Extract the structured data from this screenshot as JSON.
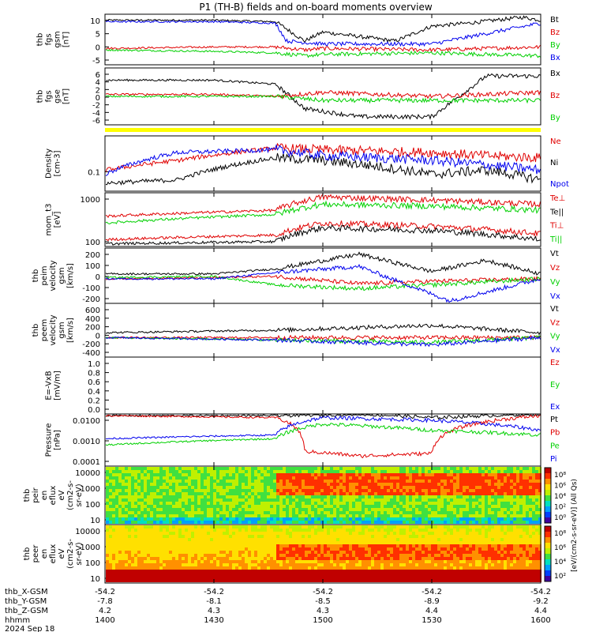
{
  "title": "P1 (TH-B) fields and on-board moments overview",
  "colors": {
    "black": "#000000",
    "red": "#e00000",
    "green": "#00d000",
    "blue": "#0000ee",
    "yellow": "#ffff00"
  },
  "panels": [
    {
      "id": "fgs-gsm",
      "ylabel": [
        "thb",
        "fgs",
        "gsm",
        "[nT]"
      ],
      "yticks": [
        "10",
        "5",
        "0",
        "-5"
      ],
      "legend": [
        {
          "label": "Bt",
          "color": "black"
        },
        {
          "label": "Bz",
          "color": "red"
        },
        {
          "label": "By",
          "color": "green"
        },
        {
          "label": "Bx",
          "color": "blue"
        }
      ]
    },
    {
      "id": "fgs-dsl",
      "ylabel": [
        "thb",
        "fgs",
        "gse",
        "[nT]"
      ],
      "yticks": [
        "6",
        "4",
        "2",
        "0",
        "-2",
        "-4",
        "-6"
      ],
      "legend": [
        {
          "label": "Bx",
          "color": "black"
        },
        {
          "label": "Bz",
          "color": "red"
        },
        {
          "label": "By",
          "color": "green"
        }
      ]
    },
    {
      "id": "density",
      "ylabel": [
        "Density",
        "[cm-3]"
      ],
      "yticks": [
        "0.1"
      ],
      "legend": [
        {
          "label": "Ne",
          "color": "red"
        },
        {
          "label": "Ni",
          "color": "black"
        },
        {
          "label": "Npot",
          "color": "blue"
        }
      ]
    },
    {
      "id": "temperature",
      "ylabel": [
        "mom_t3",
        "[eV]"
      ],
      "yticks": [
        "1000",
        "100"
      ],
      "legend": [
        {
          "label": "Te⊥",
          "color": "red"
        },
        {
          "label": "Te||",
          "color": "black"
        },
        {
          "label": "Ti⊥",
          "color": "red"
        },
        {
          "label": "Ti||",
          "color": "green"
        }
      ]
    },
    {
      "id": "peim-velocity",
      "ylabel": [
        "thb",
        "peim",
        "velocity",
        "gsm",
        "[km/s]"
      ],
      "yticks": [
        "200",
        "100",
        "0",
        "-100",
        "-200"
      ],
      "legend": [
        {
          "label": "Vt",
          "color": "black"
        },
        {
          "label": "Vz",
          "color": "red"
        },
        {
          "label": "Vy",
          "color": "green"
        },
        {
          "label": "Vx",
          "color": "blue"
        }
      ]
    },
    {
      "id": "peem-velocity",
      "ylabel": [
        "thb",
        "peem",
        "velocity",
        "gsm",
        "[km/s]"
      ],
      "yticks": [
        "600",
        "400",
        "200",
        "0",
        "-200",
        "-400"
      ],
      "legend": [
        {
          "label": "Vt",
          "color": "black"
        },
        {
          "label": "Vz",
          "color": "red"
        },
        {
          "label": "Vy",
          "color": "green"
        },
        {
          "label": "Vx",
          "color": "blue"
        }
      ]
    },
    {
      "id": "efield",
      "ylabel": [
        "E=-VxB",
        "[mV/m]"
      ],
      "yticks": [
        "1.0",
        "0.8",
        "0.6",
        "0.4",
        "0.2",
        "0.0"
      ],
      "legend": [
        {
          "label": "Ez",
          "color": "red"
        },
        {
          "label": "Ey",
          "color": "green"
        },
        {
          "label": "Ex",
          "color": "blue"
        }
      ]
    },
    {
      "id": "pressure",
      "ylabel": [
        "Pressure",
        "[nPa]"
      ],
      "yticks": [
        "0.0100",
        "0.0010",
        "0.0001"
      ],
      "legend": [
        {
          "label": "Pt",
          "color": "black"
        },
        {
          "label": "Pb",
          "color": "red"
        },
        {
          "label": "Pe",
          "color": "green"
        },
        {
          "label": "Pi",
          "color": "blue"
        }
      ]
    },
    {
      "id": "peir-eflux",
      "ylabel": [
        "thb",
        "peir",
        "en",
        "eflux",
        "eV",
        "(cm2-s-",
        "sr-eV)"
      ],
      "yticks": [
        "10000",
        "1000",
        "100",
        "10"
      ],
      "legend": []
    },
    {
      "id": "peer-eflux",
      "ylabel": [
        "thb",
        "peer",
        "en",
        "eflux",
        "eV",
        "(cm2-s-",
        "sr-eV)"
      ],
      "yticks": [
        "10000",
        "1000",
        "100",
        "10"
      ],
      "legend": []
    }
  ],
  "colorbar": {
    "label": "[eV/(cm2-s-sr-eV)] (All Qs)",
    "top_ticks": [
      "10⁸",
      "10⁶",
      "10⁴",
      "10²",
      "10⁰"
    ],
    "bottom_ticks": [
      "10⁸",
      "10⁶",
      "10⁴",
      "10²"
    ]
  },
  "ephemeris": {
    "rows": [
      {
        "label": "thb_X-GSM",
        "values": [
          "-54.2",
          "-54.2",
          "-54.2",
          "-54.2",
          "-54.2"
        ]
      },
      {
        "label": "thb_Y-GSM",
        "values": [
          "-7.8",
          "-8.1",
          "-8.5",
          "-8.9",
          "-9.2"
        ]
      },
      {
        "label": "thb_Z-GSM",
        "values": [
          "4.2",
          "4.3",
          "4.3",
          "4.4",
          "4.4"
        ]
      },
      {
        "label": "hhmm",
        "values": [
          "1400",
          "1430",
          "1500",
          "1530",
          "1600"
        ]
      }
    ],
    "date": "2024 Sep 18"
  },
  "chart_data": {
    "type": "line",
    "x_axis": {
      "label": "hhmm",
      "range": [
        "1400",
        "1600"
      ],
      "ticks": [
        "1400",
        "1430",
        "1500",
        "1530",
        "1600"
      ]
    },
    "panels": [
      {
        "panel": "fgs-gsm",
        "ylim": [
          -5,
          12
        ],
        "series": [
          {
            "name": "Bt",
            "x": [
              "1400",
              "1430",
              "1447",
              "1455",
              "1500",
              "1520",
              "1530",
              "1540",
              "1555",
              "1600"
            ],
            "values": [
              10,
              10,
              9.5,
              3,
              6,
              3,
              8,
              9,
              11,
              10
            ]
          },
          {
            "name": "Bz",
            "x": [
              "1400",
              "1430",
              "1447",
              "1455",
              "1500",
              "1530",
              "1600"
            ],
            "values": [
              0.5,
              1,
              1,
              0,
              0.5,
              0,
              1
            ]
          },
          {
            "name": "By",
            "x": [
              "1400",
              "1430",
              "1447",
              "1455",
              "1500",
              "1530",
              "1600"
            ],
            "values": [
              0,
              -0.5,
              -1,
              -2,
              -1.5,
              -1,
              -2
            ]
          },
          {
            "name": "Bx",
            "x": [
              "1400",
              "1430",
              "1447",
              "1450",
              "1500",
              "1530",
              "1600"
            ],
            "values": [
              9.5,
              9.5,
              9,
              3,
              2,
              2,
              9
            ]
          }
        ]
      },
      {
        "panel": "fgs-dsl",
        "ylim": [
          -7,
          7
        ],
        "series": [
          {
            "name": "Bx",
            "x": [
              "1400",
              "1430",
              "1447",
              "1455",
              "1510",
              "1530",
              "1545",
              "1600"
            ],
            "values": [
              4,
              4,
              3,
              -3,
              -5,
              -5,
              5,
              5
            ]
          },
          {
            "name": "Bz",
            "x": [
              "1400",
              "1430",
              "1447",
              "1500",
              "1530",
              "1600"
            ],
            "values": [
              0.5,
              0.5,
              0,
              1,
              0,
              1
            ]
          },
          {
            "name": "By",
            "x": [
              "1400",
              "1430",
              "1447",
              "1500",
              "1530",
              "1600"
            ],
            "values": [
              0,
              0,
              0,
              -1,
              -1,
              -1
            ]
          }
        ]
      },
      {
        "panel": "density",
        "scale": "log",
        "ylim": [
          0.05,
          0.5
        ],
        "series": [
          {
            "name": "Ne",
            "x": [
              "1400",
              "1420",
              "1447",
              "1500",
              "1530",
              "1545",
              "1600"
            ],
            "values": [
              0.12,
              0.18,
              0.3,
              0.28,
              0.25,
              0.22,
              0.2
            ]
          },
          {
            "name": "Ni",
            "x": [
              "1400",
              "1420",
              "1447",
              "1500",
              "1530",
              "1545",
              "1600"
            ],
            "values": [
              0.07,
              0.08,
              0.2,
              0.18,
              0.1,
              0.12,
              0.08
            ]
          },
          {
            "name": "Npot",
            "x": [
              "1400",
              "1420",
              "1447",
              "1500",
              "1530",
              "1545",
              "1600"
            ],
            "values": [
              0.1,
              0.25,
              0.28,
              0.22,
              0.18,
              0.15,
              0.12
            ]
          }
        ]
      },
      {
        "panel": "temperature",
        "scale": "log",
        "ylim": [
          50,
          2000
        ],
        "series": [
          {
            "name": "Te⊥",
            "x": [
              "1400",
              "1447",
              "1500",
              "1530",
              "1600"
            ],
            "values": [
              80,
              110,
              250,
              200,
              120
            ]
          },
          {
            "name": "Te||",
            "x": [
              "1400",
              "1447",
              "1500",
              "1530",
              "1600"
            ],
            "values": [
              60,
              70,
              180,
              150,
              80
            ]
          },
          {
            "name": "Ti⊥",
            "x": [
              "1400",
              "1447",
              "1500",
              "1530",
              "1600"
            ],
            "values": [
              400,
              600,
              1500,
              1200,
              900
            ]
          },
          {
            "name": "Ti||",
            "x": [
              "1400",
              "1447",
              "1500",
              "1530",
              "1600"
            ],
            "values": [
              250,
              450,
              900,
              800,
              600
            ]
          }
        ]
      },
      {
        "panel": "peim-velocity",
        "ylim": [
          -200,
          250
        ],
        "series": [
          {
            "name": "Vt",
            "x": [
              "1400",
              "1430",
              "1447",
              "1510",
              "1530",
              "1545",
              "1600"
            ],
            "values": [
              40,
              40,
              80,
              200,
              60,
              150,
              40
            ]
          },
          {
            "name": "Vz",
            "x": [
              "1400",
              "1430",
              "1447",
              "1510",
              "1530",
              "1600"
            ],
            "values": [
              0,
              10,
              20,
              -40,
              -20,
              0
            ]
          },
          {
            "name": "Vy",
            "x": [
              "1400",
              "1430",
              "1447",
              "1510",
              "1530",
              "1600"
            ],
            "values": [
              10,
              20,
              -50,
              -80,
              -50,
              0
            ]
          },
          {
            "name": "Vx",
            "x": [
              "1400",
              "1430",
              "1447",
              "1510",
              "1535",
              "1600"
            ],
            "values": [
              0,
              0,
              50,
              100,
              -180,
              0
            ]
          }
        ]
      },
      {
        "panel": "peem-velocity",
        "ylim": [
          -400,
          700
        ],
        "series": [
          {
            "name": "Vt",
            "x": [
              "1400",
              "1447",
              "1530",
              "1600"
            ],
            "values": [
              100,
              150,
              250,
              100
            ]
          },
          {
            "name": "Vz",
            "x": [
              "1400",
              "1447",
              "1530",
              "1600"
            ],
            "values": [
              0,
              0,
              0,
              0
            ]
          },
          {
            "name": "Vy",
            "x": [
              "1400",
              "1447",
              "1530",
              "1600"
            ],
            "values": [
              0,
              -50,
              -100,
              0
            ]
          },
          {
            "name": "Vx",
            "x": [
              "1400",
              "1447",
              "1530",
              "1600"
            ],
            "values": [
              0,
              -50,
              -150,
              0
            ]
          }
        ]
      },
      {
        "panel": "efield",
        "ylim": [
          0.0,
          1.0
        ],
        "series": []
      },
      {
        "panel": "pressure",
        "scale": "log",
        "ylim": [
          0.0001,
          0.03
        ],
        "series": [
          {
            "name": "Pt",
            "x": [
              "1400",
              "1447",
              "1510",
              "1530",
              "1600"
            ],
            "values": [
              0.025,
              0.025,
              0.03,
              0.02,
              0.03
            ]
          },
          {
            "name": "Pb",
            "x": [
              "1400",
              "1447",
              "1455",
              "1510",
              "1530",
              "1600"
            ],
            "values": [
              0.025,
              0.02,
              0.0005,
              0.0003,
              0.0004,
              0.025
            ]
          },
          {
            "name": "Pe",
            "x": [
              "1400",
              "1447",
              "1500",
              "1530",
              "1600"
            ],
            "values": [
              0.001,
              0.002,
              0.01,
              0.005,
              0.003
            ]
          },
          {
            "name": "Pi",
            "x": [
              "1400",
              "1447",
              "1500",
              "1530",
              "1600"
            ],
            "values": [
              0.002,
              0.003,
              0.02,
              0.015,
              0.005
            ]
          }
        ]
      }
    ]
  }
}
